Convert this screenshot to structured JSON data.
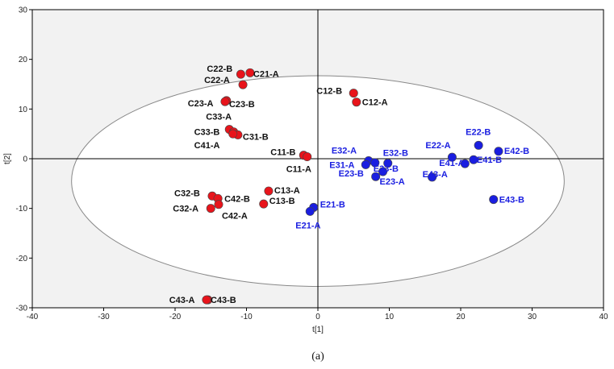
{
  "chart_data": {
    "type": "scatter",
    "xlabel": "t[1]",
    "ylabel": "t[2]",
    "xlim": [
      -40,
      40
    ],
    "ylim": [
      -30,
      30
    ],
    "xticks": [
      -40,
      -30,
      -20,
      -10,
      0,
      10,
      20,
      30,
      40
    ],
    "yticks": [
      -30,
      -20,
      -10,
      0,
      10,
      20,
      30
    ],
    "grid": false,
    "ellipse": {
      "center": [
        0,
        -4.5
      ],
      "rx": 34.5,
      "ry": 21.2
    },
    "caption": "(a)",
    "colors": {
      "C": "#e8141b",
      "E": "#1a1ee0",
      "plot_bg": "#f2f2f2",
      "ellipse_fill": "#ffffff"
    },
    "series": [
      {
        "group": "C",
        "points": [
          {
            "label": "C22-B",
            "x": -10.8,
            "y": 17.0
          },
          {
            "label": "C21-A",
            "x": -9.5,
            "y": 17.3
          },
          {
            "label": "C22-A",
            "x": -10.5,
            "y": 14.9
          },
          {
            "label": "C23-A",
            "x": -12.8,
            "y": 11.7
          },
          {
            "label": "C23-B",
            "x": -13.0,
            "y": 11.5
          },
          {
            "label": "C12-B",
            "x": 5.0,
            "y": 13.2
          },
          {
            "label": "C12-A",
            "x": 5.4,
            "y": 11.4
          },
          {
            "label": "C33-A",
            "x": -12.4,
            "y": 5.9
          },
          {
            "label": "C33-B",
            "x": -11.8,
            "y": 5.4
          },
          {
            "label": "C31-B",
            "x": -11.2,
            "y": 4.8
          },
          {
            "label": "C41-A",
            "x": -11.9,
            "y": 5.0
          },
          {
            "label": "C11-B",
            "x": -2.0,
            "y": 0.7
          },
          {
            "label": "C11-A",
            "x": -1.5,
            "y": 0.4
          },
          {
            "label": "C13-A",
            "x": -6.9,
            "y": -6.5
          },
          {
            "label": "C13-B",
            "x": -7.6,
            "y": -9.1
          },
          {
            "label": "C32-B",
            "x": -14.8,
            "y": -7.5
          },
          {
            "label": "C42-B",
            "x": -14.0,
            "y": -8.0
          },
          {
            "label": "C32-A",
            "x": -15.0,
            "y": -10.0
          },
          {
            "label": "C42-A",
            "x": -13.9,
            "y": -9.2
          },
          {
            "label": "C43-A",
            "x": -15.4,
            "y": -28.4
          },
          {
            "label": "C43-B",
            "x": -15.6,
            "y": -28.4
          }
        ]
      },
      {
        "group": "E",
        "points": [
          {
            "label": "E22-B",
            "x": 22.5,
            "y": 2.7
          },
          {
            "label": "E42-B",
            "x": 25.3,
            "y": 1.5
          },
          {
            "label": "E22-A",
            "x": 18.8,
            "y": 0.3
          },
          {
            "label": "E41-A",
            "x": 20.6,
            "y": -1.0
          },
          {
            "label": "E41-B",
            "x": 21.8,
            "y": -0.2
          },
          {
            "label": "E32-A",
            "x": 7.1,
            "y": -0.4
          },
          {
            "label": "E32-B",
            "x": 9.8,
            "y": -0.9
          },
          {
            "label": "E31-A",
            "x": 6.7,
            "y": -1.2
          },
          {
            "label": "E33-B",
            "x": 8.0,
            "y": -0.8
          },
          {
            "label": "E23-B",
            "x": 8.1,
            "y": -3.6
          },
          {
            "label": "E23-A",
            "x": 9.1,
            "y": -2.6
          },
          {
            "label": "E43-A",
            "x": 16.0,
            "y": -3.7
          },
          {
            "label": "E43-B",
            "x": 24.6,
            "y": -8.2
          },
          {
            "label": "E21-B",
            "x": -0.6,
            "y": -9.8
          },
          {
            "label": "E21-A",
            "x": -1.1,
            "y": -10.6
          }
        ]
      }
    ]
  }
}
